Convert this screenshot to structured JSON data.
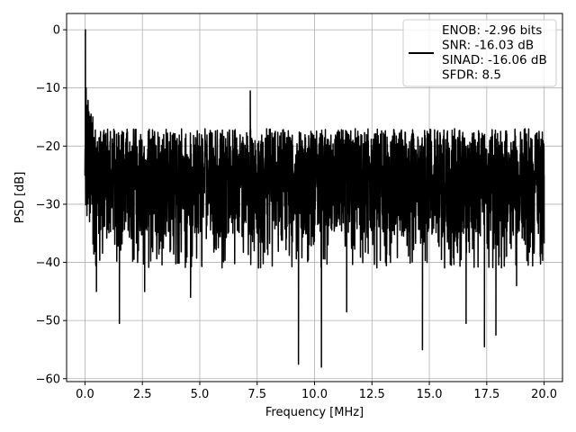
{
  "chart_data": {
    "type": "line",
    "title": "",
    "xlabel": "Frequency [MHz]",
    "ylabel": "PSD [dB]",
    "xlim": [
      -0.8,
      20.8
    ],
    "ylim": [
      -60.5,
      2.8
    ],
    "xticks": [
      0.0,
      2.5,
      5.0,
      7.5,
      10.0,
      12.5,
      15.0,
      17.5,
      20.0
    ],
    "xtick_labels": [
      "0.0",
      "2.5",
      "5.0",
      "7.5",
      "10.0",
      "12.5",
      "15.0",
      "17.5",
      "20.0"
    ],
    "yticks": [
      0,
      -10,
      -20,
      -30,
      -40,
      -50,
      -60
    ],
    "ytick_labels": [
      "0",
      "−10",
      "−20",
      "−30",
      "−40",
      "−50",
      "−60"
    ],
    "grid": true,
    "legend_position": "top-right",
    "legend_lines": [
      "ENOB: -2.96 bits",
      "SNR: -16.03 dB",
      "SINAD: -16.06 dB",
      "SFDR: 8.5"
    ],
    "line_color": "#000000",
    "series": [
      {
        "x": [
          0.0,
          0.02,
          0.05,
          0.1,
          0.15,
          0.2,
          0.3,
          0.5,
          0.6,
          1.5,
          2.6,
          4.6,
          7.2,
          9.3,
          10.3,
          11.4,
          14.7,
          16.6,
          17.4,
          17.9,
          18.8,
          20.0
        ],
        "y": [
          -25,
          0,
          -10,
          -13,
          -22,
          -33,
          -30,
          -45,
          -35,
          -50.5,
          -45,
          -46,
          -10.5,
          -57.5,
          -58,
          -48.5,
          -55,
          -50.5,
          -54.5,
          -52.5,
          -44,
          -25
        ]
      }
    ]
  }
}
